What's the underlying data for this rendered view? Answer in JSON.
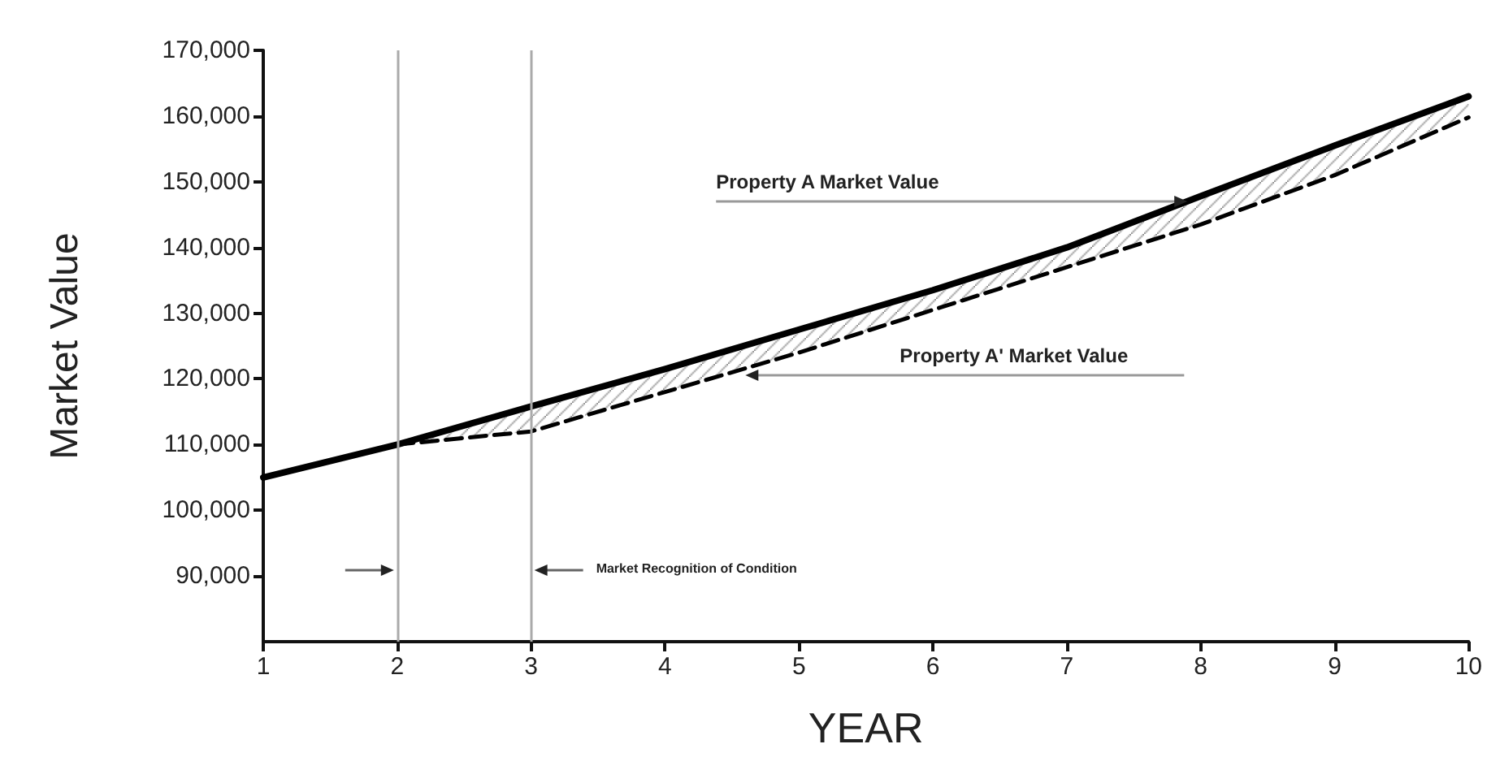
{
  "chart_data": {
    "type": "line",
    "xlabel": "YEAR",
    "ylabel": "Market Value",
    "xlim": [
      1,
      10
    ],
    "xticks": [
      1,
      2,
      3,
      4,
      5,
      6,
      7,
      8,
      9,
      10
    ],
    "ylim": [
      80000,
      170000
    ],
    "yticks": [
      {
        "value": 90000,
        "label": "90,000"
      },
      {
        "value": 100000,
        "label": "100,000"
      },
      {
        "value": 110000,
        "label": "110,000"
      },
      {
        "value": 120000,
        "label": "120,000"
      },
      {
        "value": 130000,
        "label": "130,000"
      },
      {
        "value": 140000,
        "label": "140,000"
      },
      {
        "value": 150000,
        "label": "150,000"
      },
      {
        "value": 160000,
        "label": "160,000"
      },
      {
        "value": 170000,
        "label": "170,000"
      }
    ],
    "grid": false,
    "marker": "none",
    "series": [
      {
        "color": "#000000",
        "line_style": "solid",
        "x": [
          1,
          2,
          3,
          4,
          5,
          6,
          7,
          8,
          9,
          10
        ],
        "values": [
          105000,
          110000,
          115800,
          121500,
          127500,
          133500,
          140000,
          147800,
          155500,
          163000
        ],
        "lower": [
          null,
          110000,
          112000,
          118000,
          124000,
          130500,
          137000,
          143500,
          151000,
          159800
        ],
        "upper": [
          null,
          110000,
          115800,
          121500,
          127500,
          133500,
          140000,
          147800,
          155500,
          163000
        ]
      },
      {
        "color": "#000000",
        "line_style": "dashed",
        "x": [
          2,
          3,
          4,
          5,
          6,
          7,
          8,
          9,
          10
        ],
        "values": [
          110000,
          112000,
          118000,
          124000,
          130500,
          137000,
          143500,
          151000,
          159800
        ]
      }
    ],
    "ref_lines": [
      {
        "axis": "x",
        "value": 2,
        "color": "#aaaaaa"
      },
      {
        "axis": "x",
        "value": 3,
        "color": "#aaaaaa"
      }
    ],
    "annotations": [
      {
        "text": "Property A Market Value",
        "x": 7.9,
        "y": 147500
      },
      "Property A' Market Value",
      "Market Recognition of Condition"
    ]
  }
}
